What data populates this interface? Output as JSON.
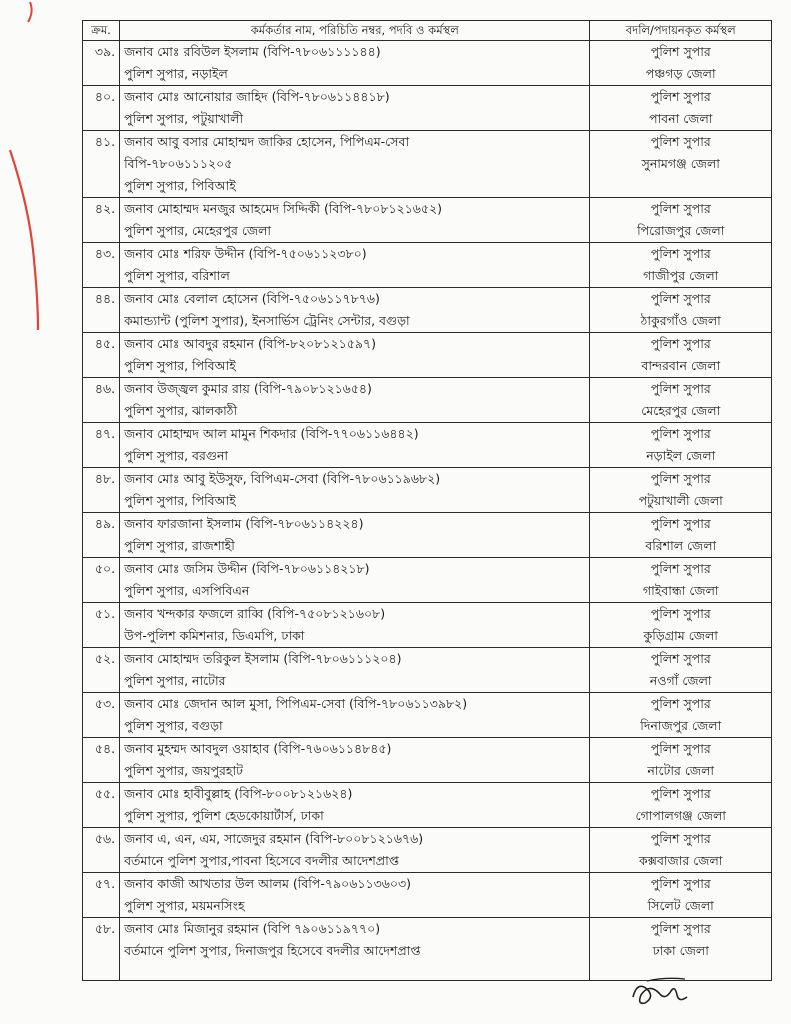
{
  "header": {
    "serial": "ক্রম.",
    "officer": "কর্মকর্তার নাম, পরিচিতি নম্বর, পদবি ও কর্মস্থল",
    "posting": "বদলি/পদায়নকৃত কর্মস্থল"
  },
  "rows": [
    {
      "no": "৩৯.",
      "lines": [
        "জনাব মোঃ রবিউল ইসলাম (বিপি-৭৮০৬১১১১৪৪)",
        "পুলিশ সুপার, নড়াইল"
      ],
      "post": [
        "পুলিশ সুপার",
        "পঞ্চগড় জেলা"
      ]
    },
    {
      "no": "৪০.",
      "lines": [
        "জনাব মোঃ আনোয়ার জাহিদ (বিপি-৭৮০৬১১৪৪১৮)",
        "পুলিশ সুপার, পটুয়াখালী"
      ],
      "post": [
        "পুলিশ সুপার",
        "পাবনা জেলা"
      ]
    },
    {
      "no": "৪১.",
      "lines": [
        "জনাব আবু বসার মোহাম্মদ জাকির হোসেন, পিপিএম-সেবা",
        "বিপি-৭৮০৬১১১২০৫",
        "পুলিশ সুপার, পিবিআই"
      ],
      "post": [
        "পুলিশ সুপার",
        "সুনামগঞ্জ জেলা"
      ]
    },
    {
      "no": "৪২.",
      "lines": [
        "জনাব মোহাম্মদ মনজুর আহমেদ সিদ্দিকী (বিপি-৭৮০৮১২১৬৫২)",
        "পুলিশ সুপার, মেহেরপুর জেলা"
      ],
      "post": [
        "পুলিশ সুপার",
        "পিরোজপুর জেলা"
      ]
    },
    {
      "no": "৪৩.",
      "lines": [
        "জনাব মোঃ শরিফ উদ্দীন (বিপি-৭৫০৬১১২৩৮০)",
        "পুলিশ সুপার, বরিশাল"
      ],
      "post": [
        "পুলিশ সুপার",
        "গাজীপুর জেলা"
      ]
    },
    {
      "no": "৪৪.",
      "lines": [
        "জনাব মোঃ বেলাল হোসেন (বিপি-৭৫০৬১১৭৮৭৬)",
        "কমান্ড্যান্ট (পুলিশ সুপার), ইনসার্ভিস ট্রেনিং সেন্টার, বগুড়া"
      ],
      "post": [
        "পুলিশ সুপার",
        "ঠাকুরগাঁও জেলা"
      ]
    },
    {
      "no": "৪৫.",
      "lines": [
        "জনাব মোঃ আবদুর রহমান (বিপি-৮২০৮১২১৫৯৭)",
        "পুলিশ সুপার, পিবিআই"
      ],
      "post": [
        "পুলিশ সুপার",
        "বান্দরবান জেলা"
      ]
    },
    {
      "no": "৪৬.",
      "lines": [
        "জনাব উজ্জ্বল কুমার রায় (বিপি-৭৯০৮১২১৬৫৪)",
        "পুলিশ সুপার, ঝালকাঠী"
      ],
      "post": [
        "পুলিশ সুপার",
        "মেহেরপুর জেলা"
      ]
    },
    {
      "no": "৪৭.",
      "lines": [
        "জনাব মোহাম্মদ আল মামুন শিকদার (বিপি-৭৭০৬১১৬৪৪২)",
        "পুলিশ সুপার, বরগুনা"
      ],
      "post": [
        "পুলিশ সুপার",
        "নড়াইল জেলা"
      ]
    },
    {
      "no": "৪৮.",
      "lines": [
        "জনাব মোঃ আবু ইউসুফ, বিপিএম-সেবা (বিপি-৭৮০৬১১৯৬৮২)",
        "পুলিশ সুপার, পিবিআই"
      ],
      "post": [
        "পুলিশ সুপার",
        "পটুয়াখালী জেলা"
      ]
    },
    {
      "no": "৪৯.",
      "lines": [
        "জনাব ফারজানা ইসলাম (বিপি-৭৮০৬১১৪২২৪)",
        "পুলিশ সুপার, রাজশাহী"
      ],
      "post": [
        "পুলিশ সুপার",
        "বরিশাল জেলা"
      ]
    },
    {
      "no": "৫০.",
      "lines": [
        "জনাব মোঃ জসিম উদ্দীন (বিপি-৭৮০৬১১৪২১৮)",
        "পুলিশ সুপার, এসপিবিএন"
      ],
      "post": [
        "পুলিশ সুপার",
        "গাইবান্ধা জেলা"
      ]
    },
    {
      "no": "৫১.",
      "lines": [
        "জনাব খন্দকার ফজলে রাব্বি (বিপি-৭৫০৮১২১৬০৮)",
        "উপ-পুলিশ কমিশনার, ডিএমপি, ঢাকা"
      ],
      "post": [
        "পুলিশ সুপার",
        "কুড়িগ্রাম জেলা"
      ]
    },
    {
      "no": "৫২.",
      "lines": [
        "জনাব মোহাম্মদ তরিকুল ইসলাম (বিপি-৭৮০৬১১১২০৪)",
        "পুলিশ সুপার, নাটোর"
      ],
      "post": [
        "পুলিশ সুপার",
        "নওগাঁ জেলা"
      ]
    },
    {
      "no": "৫৩.",
      "lines": [
        "জনাব মোঃ জেদান আল মুসা, পিপিএম-সেবা (বিপি-৭৮০৬১১৩৯৮২)",
        "পুলিশ সুপার, বগুড়া"
      ],
      "post": [
        "পুলিশ সুপার",
        "দিনাজপুর জেলা"
      ]
    },
    {
      "no": "৫৪.",
      "lines": [
        "জনাব মুহম্মদ আবদুল ওয়াহাব (বিপি-৭৬০৬১১৪৮৪৫)",
        "পুলিশ সুপার, জয়পুরহাট"
      ],
      "post": [
        "পুলিশ সুপার",
        "নাটোর জেলা"
      ]
    },
    {
      "no": "৫৫.",
      "lines": [
        "জনাব মোঃ হাবীবুল্লাহ (বিপি-৮০০৮১২১৬২৪)",
        "পুলিশ সুপার, পুলিশ হেডকোয়ার্টার্স, ঢাকা"
      ],
      "post": [
        "পুলিশ সুপার",
        "গোপালগঞ্জ জেলা"
      ]
    },
    {
      "no": "৫৬.",
      "lines": [
        "জনাব এ, এন, এম, সাজেদুর রহমান (বিপি-৮০০৮১২১৬৭৬)",
        "বর্তমানে পুলিশ সুপার,পাবনা হিসেবে বদলীর আদেশপ্রাপ্ত"
      ],
      "post": [
        "পুলিশ সুপার",
        "কক্সবাজার জেলা"
      ]
    },
    {
      "no": "৫৭.",
      "lines": [
        "জনাব কাজী আখতার উল আলম (বিপি-৭৯০৬১১৩৬০৩)",
        "পুলিশ সুপার, ময়মনসিংহ"
      ],
      "post": [
        "পুলিশ সুপার",
        "সিলেট জেলা"
      ]
    },
    {
      "no": "৫৮.",
      "lines": [
        "জনাব মোঃ মিজানুর রহমান (বিপি ৭৯০৬১১৯৭৭০)",
        "বর্তমানে পুলিশ সুপার, দিনাজপুর হিসেবে বদলীর আদেশপ্রাপ্ত"
      ],
      "post": [
        "পুলিশ সুপার",
        "ঢাকা জেলা"
      ]
    }
  ],
  "colors": {
    "ink": "#1a1a1a",
    "red_mark": "#e0453a",
    "paper": "#fbfbfa"
  }
}
